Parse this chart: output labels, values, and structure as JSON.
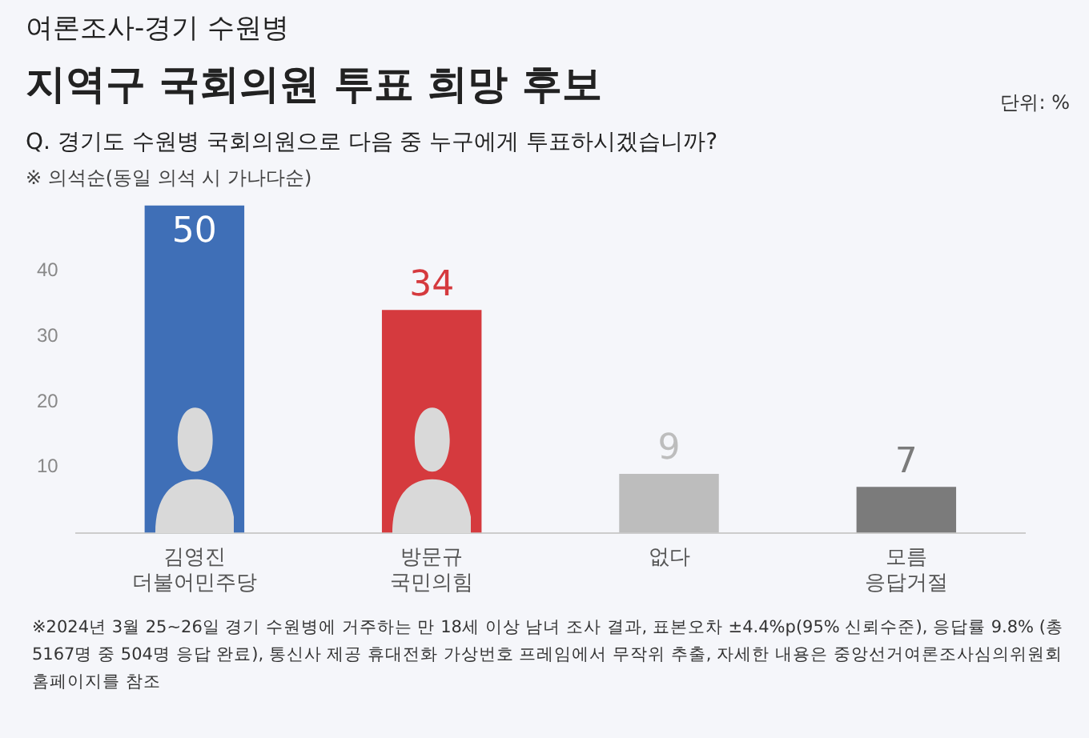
{
  "chart_data": {
    "type": "bar",
    "title": "지역구 국회의원 투표 희망 후보",
    "subtitle": "Q. 경기도 수원병 국회의원으로 다음 중 누구에게 투표하시겠습니까?",
    "annotations": [
      "여론조사-경기 수원병",
      "단위: %",
      "※ 의석순(동일 의석 시 가나다순)",
      "※2024년 3월 25~26일 경기 수원병에 거주하는 만 18세 이상 남녀 조사 결과, 표본오차 ±4.4%p(95% 신뢰수준), 응답률 9.8% (총 5167명 중 504명 응답 완료), 통신사 제공 휴대전화 가상번호 프레임에서 무작위 추출, 자세한 내용은 중앙선거여론조사심의위원회 홈페이지를 참조"
    ],
    "categories": [
      "김영진\n더불어민주당",
      "방문규\n국민의힘",
      "없다",
      "모름\n응답거절"
    ],
    "values": [
      50,
      34,
      9,
      7
    ],
    "colors": [
      "#3f6fb7",
      "#d53a3e",
      "#bdbdbd",
      "#7b7b7b"
    ],
    "ylim": [
      0,
      50
    ],
    "yticks": [
      10,
      20,
      30,
      40
    ],
    "grid": false,
    "legend": false,
    "data_labels": true
  }
}
